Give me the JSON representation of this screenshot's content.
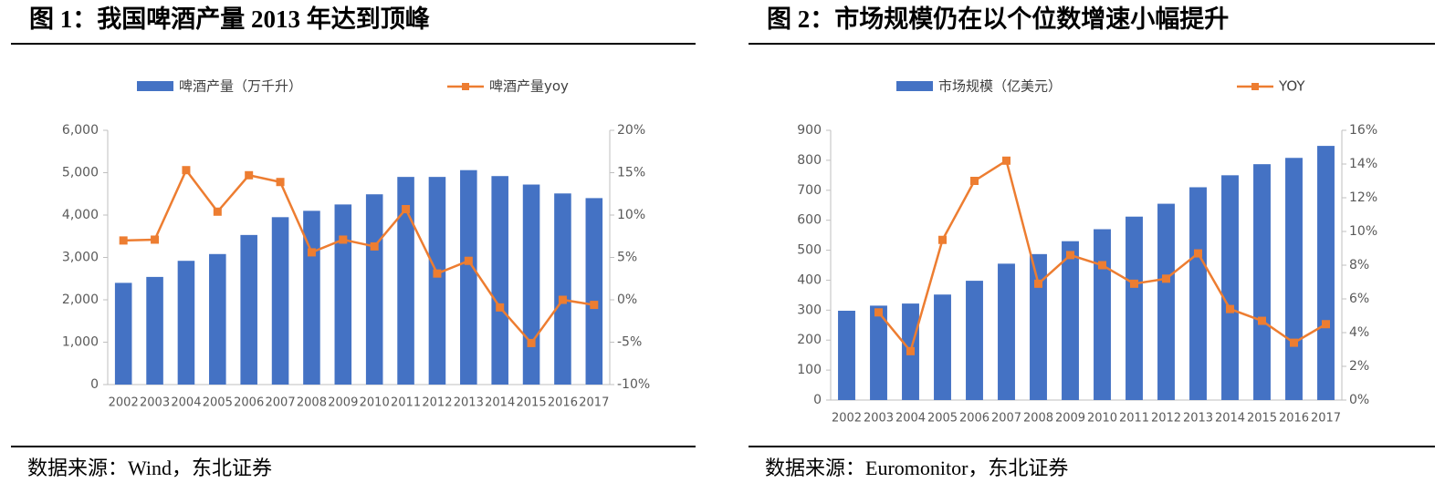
{
  "chart_data": [
    {
      "type": "bar",
      "title": "图 1：我国啤酒产量 2013 年达到顶峰",
      "source": "数据来源：Wind，东北证券",
      "categories": [
        "2002",
        "2003",
        "2004",
        "2005",
        "2006",
        "2007",
        "2008",
        "2009",
        "2010",
        "2011",
        "2012",
        "2013",
        "2014",
        "2015",
        "2016",
        "2017"
      ],
      "series": [
        {
          "name": "啤酒产量（万千升）",
          "type": "bar",
          "color": "#4472c4",
          "values": [
            2400,
            2540,
            2920,
            3080,
            3530,
            3950,
            4100,
            4250,
            4490,
            4900,
            4900,
            5060,
            4920,
            4720,
            4510,
            4400
          ]
        },
        {
          "name": "啤酒产量yoy",
          "type": "line",
          "axis": "y2",
          "color": "#ed7d31",
          "values": [
            7.0,
            7.1,
            15.3,
            10.4,
            14.7,
            13.9,
            5.6,
            7.1,
            6.3,
            10.7,
            3.1,
            4.6,
            -0.9,
            -5.1,
            0.0,
            -0.6
          ]
        }
      ],
      "ylim": [
        0,
        6000
      ],
      "yticks": [
        0,
        {
          "value": 1000,
          "label": "1,000"
        },
        {
          "value": 2000,
          "label": "2,000"
        },
        {
          "value": 3000,
          "label": "3,000"
        },
        {
          "value": 4000,
          "label": "4,000"
        },
        {
          "value": 5000,
          "label": "5,000"
        },
        {
          "value": 6000,
          "label": "6,000"
        }
      ],
      "y2lim": [
        -10,
        20
      ],
      "y2ticks": [
        {
          "value": -10,
          "label": "-10%"
        },
        {
          "value": -5,
          "label": "-5%"
        },
        {
          "value": 0,
          "label": "0%"
        },
        {
          "value": 5,
          "label": "5%"
        },
        {
          "value": 10,
          "label": "10%"
        },
        {
          "value": 15,
          "label": "15%"
        },
        {
          "value": 20,
          "label": "20%"
        }
      ]
    },
    {
      "type": "bar",
      "title": "图 2：市场规模仍在以个位数增速小幅提升",
      "source": "数据来源：Euromonitor，东北证券",
      "categories": [
        "2002",
        "2003",
        "2004",
        "2005",
        "2006",
        "2007",
        "2008",
        "2009",
        "2010",
        "2011",
        "2012",
        "2013",
        "2014",
        "2015",
        "2016",
        "2017"
      ],
      "series": [
        {
          "name": "市场规模（亿美元）",
          "type": "bar",
          "color": "#4472c4",
          "values": [
            298,
            315,
            322,
            352,
            398,
            455,
            487,
            530,
            570,
            612,
            655,
            710,
            750,
            787,
            808,
            848
          ]
        },
        {
          "name": "YOY",
          "type": "line",
          "axis": "y2",
          "color": "#ed7d31",
          "values": [
            null,
            5.2,
            2.9,
            9.5,
            13.0,
            14.2,
            6.9,
            8.6,
            8.0,
            6.9,
            7.2,
            8.7,
            5.4,
            4.7,
            3.4,
            4.5
          ]
        }
      ],
      "ylim": [
        0,
        900
      ],
      "yticks": [
        0,
        100,
        200,
        300,
        400,
        500,
        600,
        700,
        800,
        900
      ],
      "y2lim": [
        0,
        16
      ],
      "y2ticks": [
        {
          "value": 0,
          "label": "0%"
        },
        {
          "value": 2,
          "label": "2%"
        },
        {
          "value": 4,
          "label": "4%"
        },
        {
          "value": 6,
          "label": "6%"
        },
        {
          "value": 8,
          "label": "8%"
        },
        {
          "value": 10,
          "label": "10%"
        },
        {
          "value": 12,
          "label": "12%"
        },
        {
          "value": 14,
          "label": "14%"
        },
        {
          "value": 16,
          "label": "16%"
        }
      ]
    }
  ]
}
